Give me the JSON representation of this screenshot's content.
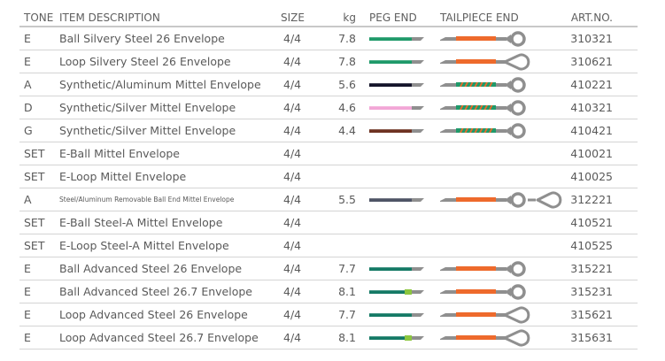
{
  "table": {
    "headers": {
      "tone": "TONE",
      "description": "ITEM DESCRIPTION",
      "size": "SIZE",
      "kg": "kg",
      "peg_end": "PEG END",
      "tailpiece_end": "TAILPIECE END",
      "art_no": "ART.NO."
    },
    "colors": {
      "steel_gray": "#8f8f8f",
      "orange": "#ee6a2c",
      "green_wrap": "#1f9a6a",
      "lime_mark": "#8cc63f",
      "divider": "#d4d4d4",
      "text": "#5a5a5a"
    },
    "rows": [
      {
        "tone": "E",
        "description": "Ball Silvery Steel 26 Envelope",
        "size": "4/4",
        "kg": "7.8",
        "peg_icon": "peg-end-icon",
        "peg_color": "#1f9a6a",
        "peg_marker": false,
        "tail_icon": "ball-end-icon",
        "tail_type": "ball",
        "tail_wrap": "orange",
        "art_no": "310321"
      },
      {
        "tone": "E",
        "description": "Loop Silvery Steel 26 Envelope",
        "size": "4/4",
        "kg": "7.8",
        "peg_icon": "peg-end-icon",
        "peg_color": "#1f9a6a",
        "peg_marker": false,
        "tail_icon": "loop-end-icon",
        "tail_type": "loop",
        "tail_wrap": "orange",
        "art_no": "310621"
      },
      {
        "tone": "A",
        "description": "Synthetic/Aluminum Mittel Envelope",
        "size": "4/4",
        "kg": "5.6",
        "peg_icon": "peg-end-icon",
        "peg_color": "#14142a",
        "peg_marker": false,
        "tail_icon": "ball-end-icon",
        "tail_type": "ball",
        "tail_wrap": "striped",
        "art_no": "410221"
      },
      {
        "tone": "D",
        "description": "Synthetic/Silver Mittel Envelope",
        "size": "4/4",
        "kg": "4.6",
        "peg_icon": "peg-end-icon",
        "peg_color": "#f2a6d6",
        "peg_marker": false,
        "tail_icon": "ball-end-icon",
        "tail_type": "ball",
        "tail_wrap": "striped",
        "art_no": "410321"
      },
      {
        "tone": "G",
        "description": "Synthetic/Silver Mittel Envelope",
        "size": "4/4",
        "kg": "4.4",
        "peg_icon": "peg-end-icon",
        "peg_color": "#6e3222",
        "peg_marker": false,
        "tail_icon": "ball-end-icon",
        "tail_type": "ball",
        "tail_wrap": "striped",
        "art_no": "410421"
      },
      {
        "tone": "SET",
        "description": "E-Ball Mittel Envelope",
        "size": "4/4",
        "kg": "",
        "peg_icon": "",
        "peg_color": "",
        "peg_marker": false,
        "tail_icon": "",
        "tail_type": "",
        "tail_wrap": "",
        "art_no": "410021"
      },
      {
        "tone": "SET",
        "description": "E-Loop Mittel Envelope",
        "size": "4/4",
        "kg": "",
        "peg_icon": "",
        "peg_color": "",
        "peg_marker": false,
        "tail_icon": "",
        "tail_type": "",
        "tail_wrap": "",
        "art_no": "410025"
      },
      {
        "tone": "A",
        "description": "Steel/Aluminum Removable Ball End Mittel Envelope",
        "size": "4/4",
        "kg": "5.5",
        "small_text": true,
        "peg_icon": "peg-end-icon",
        "peg_color": "#4f5566",
        "peg_marker": false,
        "tail_icon": "ball-and-loop-end-icon",
        "tail_type": "ball+loop",
        "tail_wrap": "orange",
        "art_no": "312221"
      },
      {
        "tone": "SET",
        "description": "E-Ball Steel-A Mittel Envelope",
        "size": "4/4",
        "kg": "",
        "peg_icon": "",
        "peg_color": "",
        "peg_marker": false,
        "tail_icon": "",
        "tail_type": "",
        "tail_wrap": "",
        "art_no": "410521"
      },
      {
        "tone": "SET",
        "description": "E-Loop Steel-A Mittel Envelope",
        "size": "4/4",
        "kg": "",
        "peg_icon": "",
        "peg_color": "",
        "peg_marker": false,
        "tail_icon": "",
        "tail_type": "",
        "tail_wrap": "",
        "art_no": "410525"
      },
      {
        "tone": "E",
        "description": "Ball Advanced Steel 26 Envelope",
        "size": "4/4",
        "kg": "7.7",
        "peg_icon": "peg-end-icon",
        "peg_color": "#157a66",
        "peg_marker": false,
        "tail_icon": "ball-end-icon",
        "tail_type": "ball",
        "tail_wrap": "orange",
        "art_no": "315221"
      },
      {
        "tone": "E",
        "description": "Ball Advanced Steel 26.7 Envelope",
        "size": "4/4",
        "kg": "8.1",
        "peg_icon": "peg-end-icon",
        "peg_color": "#157a66",
        "peg_marker": true,
        "tail_icon": "ball-end-icon",
        "tail_type": "ball",
        "tail_wrap": "orange",
        "art_no": "315231"
      },
      {
        "tone": "E",
        "description": "Loop Advanced Steel 26 Envelope",
        "size": "4/4",
        "kg": "7.7",
        "peg_icon": "peg-end-icon",
        "peg_color": "#157a66",
        "peg_marker": false,
        "tail_icon": "loop-end-icon",
        "tail_type": "loop",
        "tail_wrap": "orange",
        "art_no": "315621"
      },
      {
        "tone": "E",
        "description": "Loop Advanced Steel 26.7 Envelope",
        "size": "4/4",
        "kg": "8.1",
        "peg_icon": "peg-end-icon",
        "peg_color": "#157a66",
        "peg_marker": true,
        "tail_icon": "loop-end-icon",
        "tail_type": "loop",
        "tail_wrap": "orange",
        "art_no": "315631"
      }
    ]
  }
}
